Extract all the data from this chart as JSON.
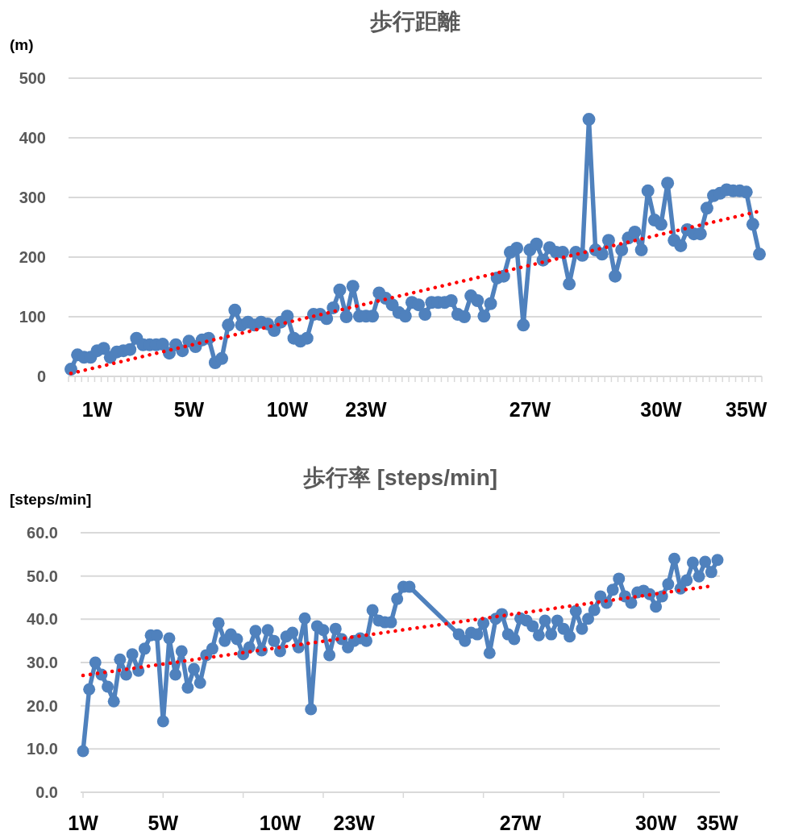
{
  "chart_data": [
    {
      "type": "line",
      "title": "歩行距離",
      "ylabel": "(m)",
      "grid": "y",
      "categories": [
        null,
        null,
        null,
        null,
        "1W",
        null,
        null,
        null,
        null,
        null,
        null,
        null,
        null,
        null,
        null,
        null,
        null,
        null,
        "5W",
        null,
        null,
        null,
        null,
        null,
        null,
        null,
        null,
        null,
        null,
        null,
        null,
        null,
        null,
        "10W",
        null,
        null,
        null,
        null,
        null,
        null,
        null,
        null,
        null,
        null,
        null,
        "23W",
        null,
        null,
        null,
        null,
        null,
        null,
        null,
        null,
        null,
        null,
        null,
        null,
        null,
        null,
        null,
        null,
        null,
        null,
        null,
        null,
        null,
        null,
        null,
        null,
        "27W",
        null,
        null,
        null,
        null,
        null,
        null,
        null,
        null,
        null,
        null,
        null,
        null,
        null,
        null,
        null,
        null,
        null,
        null,
        null,
        "30W",
        null,
        null,
        null,
        null,
        null,
        null,
        null,
        null,
        null,
        null,
        null,
        null,
        "35W",
        null,
        null
      ],
      "ylim": [
        0,
        500
      ],
      "yticks": [
        0,
        100,
        200,
        300,
        400,
        500
      ],
      "series": [
        {
          "color": "#4f81bd",
          "marker": "circle",
          "line_style": "solid",
          "values": [
            12,
            36,
            32,
            32,
            43,
            47,
            32,
            41,
            43,
            45,
            64,
            53,
            53,
            53,
            54,
            39,
            53,
            43,
            59,
            50,
            61,
            64,
            23,
            30,
            86,
            111,
            86,
            91,
            86,
            91,
            88,
            77,
            91,
            101,
            64,
            59,
            64,
            104,
            104,
            97,
            115,
            145,
            100,
            151,
            101,
            101,
            101,
            140,
            131,
            120,
            107,
            101,
            124,
            120,
            104,
            124,
            124,
            124,
            127,
            104,
            100,
            135,
            127,
            101,
            122,
            165,
            168,
            208,
            215,
            86,
            212,
            222,
            195,
            216,
            208,
            208,
            155,
            208,
            203,
            431,
            212,
            205,
            228,
            168,
            212,
            232,
            242,
            212,
            311,
            262,
            255,
            324,
            228,
            219,
            246,
            239,
            239,
            282,
            303,
            307,
            313,
            311,
            311,
            309,
            255,
            205
          ]
        },
        {
          "color": "#ff0000",
          "marker": "none",
          "line_style": "dotted",
          "values": [
            5,
            null,
            null,
            null,
            null,
            null,
            null,
            null,
            null,
            null,
            null,
            null,
            null,
            null,
            null,
            null,
            null,
            null,
            null,
            null,
            null,
            null,
            null,
            null,
            null,
            null,
            null,
            null,
            null,
            null,
            null,
            null,
            null,
            null,
            null,
            null,
            null,
            null,
            null,
            null,
            null,
            null,
            null,
            null,
            null,
            null,
            null,
            null,
            null,
            null,
            null,
            null,
            null,
            null,
            null,
            null,
            null,
            null,
            null,
            null,
            null,
            null,
            null,
            null,
            null,
            null,
            null,
            null,
            null,
            null,
            null,
            null,
            null,
            null,
            null,
            null,
            null,
            null,
            null,
            null,
            null,
            null,
            null,
            null,
            null,
            null,
            null,
            null,
            null,
            null,
            null,
            null,
            null,
            null,
            null,
            null,
            null,
            null,
            null,
            null,
            null,
            null,
            null,
            null,
            null,
            277
          ]
        }
      ]
    },
    {
      "type": "line",
      "title": "歩行率 [steps/min]",
      "ylabel": "[steps/min]",
      "grid": "y",
      "categories": [
        "1W",
        null,
        null,
        null,
        null,
        null,
        null,
        null,
        null,
        null,
        null,
        null,
        null,
        "5W",
        null,
        null,
        null,
        null,
        null,
        null,
        null,
        null,
        null,
        null,
        null,
        null,
        null,
        null,
        null,
        null,
        null,
        null,
        "10W",
        null,
        null,
        null,
        null,
        null,
        null,
        null,
        null,
        null,
        null,
        null,
        "23W",
        null,
        null,
        null,
        null,
        null,
        null,
        null,
        null,
        null,
        null,
        null,
        null,
        null,
        null,
        null,
        null,
        null,
        null,
        null,
        null,
        null,
        null,
        null,
        null,
        null,
        null,
        "27W",
        null,
        null,
        null,
        null,
        null,
        null,
        null,
        null,
        null,
        null,
        null,
        null,
        null,
        null,
        null,
        null,
        null,
        null,
        null,
        null,
        null,
        "30W",
        null,
        null,
        null,
        null,
        null,
        null,
        null,
        null,
        null,
        "35W"
      ],
      "ylim": [
        0,
        60
      ],
      "yticks": [
        {
          "value": 0,
          "label": "0.0"
        },
        {
          "value": 10,
          "label": "10.0"
        },
        {
          "value": 20,
          "label": "20.0"
        },
        {
          "value": 30,
          "label": "30.0"
        },
        {
          "value": 40,
          "label": "40.0"
        },
        {
          "value": 50,
          "label": "50.0"
        },
        {
          "value": 60,
          "label": "60.0"
        }
      ],
      "series": [
        {
          "color": "#4f81bd",
          "marker": "circle",
          "line_style": "solid",
          "values": [
            9.5,
            23.8,
            30,
            27.2,
            24.4,
            21,
            30.7,
            27.2,
            31.9,
            28.1,
            33.2,
            36.3,
            36.3,
            16.4,
            35.6,
            27.2,
            32.6,
            24.2,
            28.5,
            25.3,
            31.7,
            33.2,
            39.1,
            35,
            36.5,
            35.4,
            31.9,
            33.5,
            37.3,
            32.8,
            37.5,
            35,
            32.6,
            36,
            36.9,
            33.5,
            40.2,
            19.2,
            38.4,
            37.5,
            31.7,
            37.8,
            35.4,
            33.5,
            35,
            35.6,
            35,
            42.1,
            39.7,
            39.3,
            39.3,
            44.7,
            47.5,
            47.5,
            null,
            null,
            null,
            null,
            null,
            null,
            null,
            36.5,
            35,
            36.9,
            36.5,
            39.1,
            32.2,
            40.1,
            41.2,
            36.5,
            35.4,
            40.2,
            39.7,
            38.4,
            36.3,
            39.7,
            36.5,
            39.7,
            37.8,
            36,
            41.9,
            37.8,
            40.1,
            42.1,
            45.3,
            43.8,
            46.8,
            49.4,
            45.3,
            43.8,
            46.2,
            46.6,
            45.8,
            42.9,
            45.3,
            48.1,
            54,
            47.1,
            49,
            53.1,
            49.9,
            53.3,
            50.9,
            53.7
          ]
        },
        {
          "color": "#ff0000",
          "marker": "none",
          "line_style": "dotted",
          "values": [
            27,
            null,
            null,
            null,
            null,
            null,
            null,
            null,
            null,
            null,
            null,
            null,
            null,
            null,
            null,
            null,
            null,
            null,
            null,
            null,
            null,
            null,
            null,
            null,
            null,
            null,
            null,
            null,
            null,
            null,
            null,
            null,
            null,
            null,
            null,
            null,
            null,
            null,
            null,
            null,
            null,
            null,
            null,
            null,
            null,
            null,
            null,
            null,
            null,
            null,
            null,
            null,
            null,
            null,
            null,
            null,
            null,
            null,
            null,
            null,
            null,
            null,
            null,
            null,
            null,
            null,
            null,
            null,
            null,
            null,
            null,
            null,
            null,
            null,
            null,
            null,
            null,
            null,
            null,
            null,
            null,
            null,
            null,
            null,
            null,
            null,
            null,
            null,
            null,
            null,
            null,
            null,
            null,
            null,
            null,
            null,
            null,
            null,
            null,
            null,
            null,
            null,
            47.7,
            null
          ]
        }
      ]
    }
  ]
}
